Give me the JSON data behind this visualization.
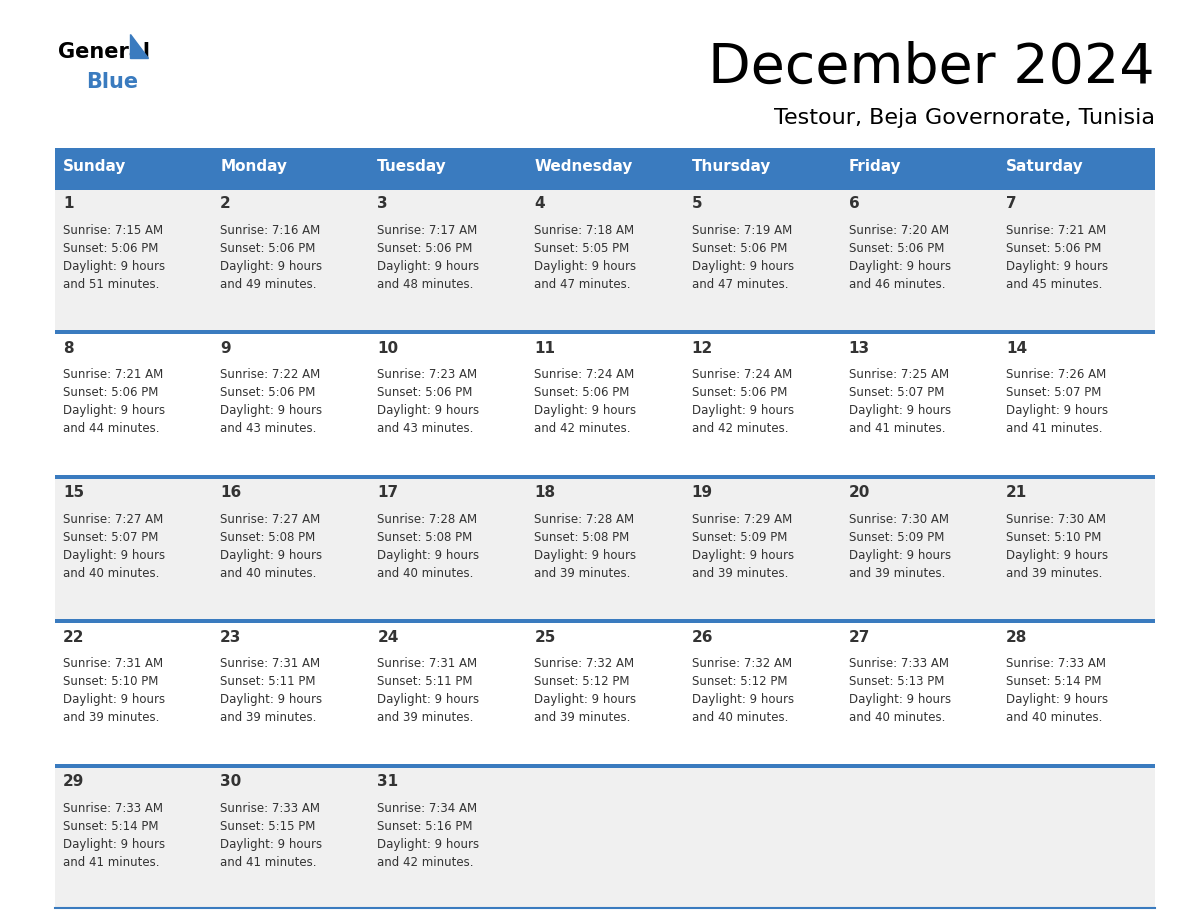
{
  "title": "December 2024",
  "subtitle": "Testour, Beja Governorate, Tunisia",
  "header_bg": "#3a7bbf",
  "header_text": "#ffffff",
  "row_bg_odd": "#f0f0f0",
  "row_bg_even": "#ffffff",
  "separator_color": "#3a7bbf",
  "text_color": "#333333",
  "days_of_week": [
    "Sunday",
    "Monday",
    "Tuesday",
    "Wednesday",
    "Thursday",
    "Friday",
    "Saturday"
  ],
  "calendar_data": [
    [
      {
        "day": "1",
        "sunrise": "7:15 AM",
        "sunset": "5:06 PM",
        "daylight_h": "9 hours",
        "daylight_m": "and 51 minutes."
      },
      {
        "day": "2",
        "sunrise": "7:16 AM",
        "sunset": "5:06 PM",
        "daylight_h": "9 hours",
        "daylight_m": "and 49 minutes."
      },
      {
        "day": "3",
        "sunrise": "7:17 AM",
        "sunset": "5:06 PM",
        "daylight_h": "9 hours",
        "daylight_m": "and 48 minutes."
      },
      {
        "day": "4",
        "sunrise": "7:18 AM",
        "sunset": "5:05 PM",
        "daylight_h": "9 hours",
        "daylight_m": "and 47 minutes."
      },
      {
        "day": "5",
        "sunrise": "7:19 AM",
        "sunset": "5:06 PM",
        "daylight_h": "9 hours",
        "daylight_m": "and 47 minutes."
      },
      {
        "day": "6",
        "sunrise": "7:20 AM",
        "sunset": "5:06 PM",
        "daylight_h": "9 hours",
        "daylight_m": "and 46 minutes."
      },
      {
        "day": "7",
        "sunrise": "7:21 AM",
        "sunset": "5:06 PM",
        "daylight_h": "9 hours",
        "daylight_m": "and 45 minutes."
      }
    ],
    [
      {
        "day": "8",
        "sunrise": "7:21 AM",
        "sunset": "5:06 PM",
        "daylight_h": "9 hours",
        "daylight_m": "and 44 minutes."
      },
      {
        "day": "9",
        "sunrise": "7:22 AM",
        "sunset": "5:06 PM",
        "daylight_h": "9 hours",
        "daylight_m": "and 43 minutes."
      },
      {
        "day": "10",
        "sunrise": "7:23 AM",
        "sunset": "5:06 PM",
        "daylight_h": "9 hours",
        "daylight_m": "and 43 minutes."
      },
      {
        "day": "11",
        "sunrise": "7:24 AM",
        "sunset": "5:06 PM",
        "daylight_h": "9 hours",
        "daylight_m": "and 42 minutes."
      },
      {
        "day": "12",
        "sunrise": "7:24 AM",
        "sunset": "5:06 PM",
        "daylight_h": "9 hours",
        "daylight_m": "and 42 minutes."
      },
      {
        "day": "13",
        "sunrise": "7:25 AM",
        "sunset": "5:07 PM",
        "daylight_h": "9 hours",
        "daylight_m": "and 41 minutes."
      },
      {
        "day": "14",
        "sunrise": "7:26 AM",
        "sunset": "5:07 PM",
        "daylight_h": "9 hours",
        "daylight_m": "and 41 minutes."
      }
    ],
    [
      {
        "day": "15",
        "sunrise": "7:27 AM",
        "sunset": "5:07 PM",
        "daylight_h": "9 hours",
        "daylight_m": "and 40 minutes."
      },
      {
        "day": "16",
        "sunrise": "7:27 AM",
        "sunset": "5:08 PM",
        "daylight_h": "9 hours",
        "daylight_m": "and 40 minutes."
      },
      {
        "day": "17",
        "sunrise": "7:28 AM",
        "sunset": "5:08 PM",
        "daylight_h": "9 hours",
        "daylight_m": "and 40 minutes."
      },
      {
        "day": "18",
        "sunrise": "7:28 AM",
        "sunset": "5:08 PM",
        "daylight_h": "9 hours",
        "daylight_m": "and 39 minutes."
      },
      {
        "day": "19",
        "sunrise": "7:29 AM",
        "sunset": "5:09 PM",
        "daylight_h": "9 hours",
        "daylight_m": "and 39 minutes."
      },
      {
        "day": "20",
        "sunrise": "7:30 AM",
        "sunset": "5:09 PM",
        "daylight_h": "9 hours",
        "daylight_m": "and 39 minutes."
      },
      {
        "day": "21",
        "sunrise": "7:30 AM",
        "sunset": "5:10 PM",
        "daylight_h": "9 hours",
        "daylight_m": "and 39 minutes."
      }
    ],
    [
      {
        "day": "22",
        "sunrise": "7:31 AM",
        "sunset": "5:10 PM",
        "daylight_h": "9 hours",
        "daylight_m": "and 39 minutes."
      },
      {
        "day": "23",
        "sunrise": "7:31 AM",
        "sunset": "5:11 PM",
        "daylight_h": "9 hours",
        "daylight_m": "and 39 minutes."
      },
      {
        "day": "24",
        "sunrise": "7:31 AM",
        "sunset": "5:11 PM",
        "daylight_h": "9 hours",
        "daylight_m": "and 39 minutes."
      },
      {
        "day": "25",
        "sunrise": "7:32 AM",
        "sunset": "5:12 PM",
        "daylight_h": "9 hours",
        "daylight_m": "and 39 minutes."
      },
      {
        "day": "26",
        "sunrise": "7:32 AM",
        "sunset": "5:12 PM",
        "daylight_h": "9 hours",
        "daylight_m": "and 40 minutes."
      },
      {
        "day": "27",
        "sunrise": "7:33 AM",
        "sunset": "5:13 PM",
        "daylight_h": "9 hours",
        "daylight_m": "and 40 minutes."
      },
      {
        "day": "28",
        "sunrise": "7:33 AM",
        "sunset": "5:14 PM",
        "daylight_h": "9 hours",
        "daylight_m": "and 40 minutes."
      }
    ],
    [
      {
        "day": "29",
        "sunrise": "7:33 AM",
        "sunset": "5:14 PM",
        "daylight_h": "9 hours",
        "daylight_m": "and 41 minutes."
      },
      {
        "day": "30",
        "sunrise": "7:33 AM",
        "sunset": "5:15 PM",
        "daylight_h": "9 hours",
        "daylight_m": "and 41 minutes."
      },
      {
        "day": "31",
        "sunrise": "7:34 AM",
        "sunset": "5:16 PM",
        "daylight_h": "9 hours",
        "daylight_m": "and 42 minutes."
      },
      null,
      null,
      null,
      null
    ]
  ]
}
